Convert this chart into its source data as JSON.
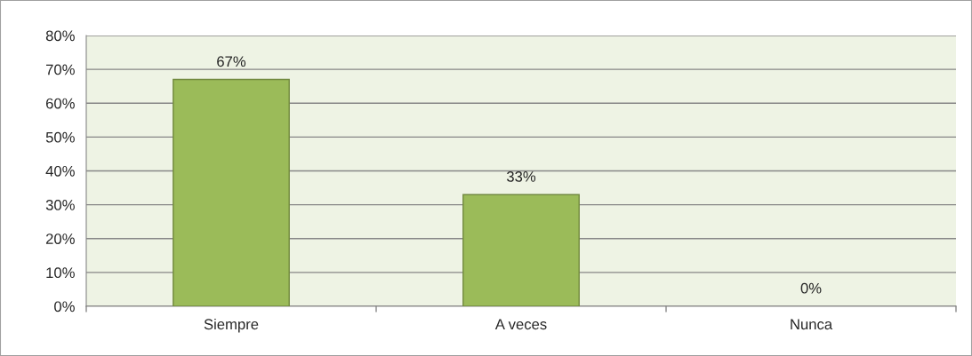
{
  "chart_data": {
    "type": "bar",
    "categories": [
      "Siempre",
      "A veces",
      "Nunca"
    ],
    "values": [
      67,
      33,
      0
    ],
    "color": "#9bbb59",
    "value_labels": [
      "67%",
      "33%",
      "0%"
    ],
    "ylim": [
      0,
      80
    ],
    "yticks": [
      {
        "value": 0,
        "label": "0%"
      },
      {
        "value": 10,
        "label": "10%"
      },
      {
        "value": 20,
        "label": "20%"
      },
      {
        "value": 30,
        "label": "30%"
      },
      {
        "value": 40,
        "label": "40%"
      },
      {
        "value": 50,
        "label": "50%"
      },
      {
        "value": 60,
        "label": "60%"
      },
      {
        "value": 70,
        "label": "70%"
      },
      {
        "value": 80,
        "label": "80%"
      }
    ],
    "grid": "y",
    "legend": false
  }
}
